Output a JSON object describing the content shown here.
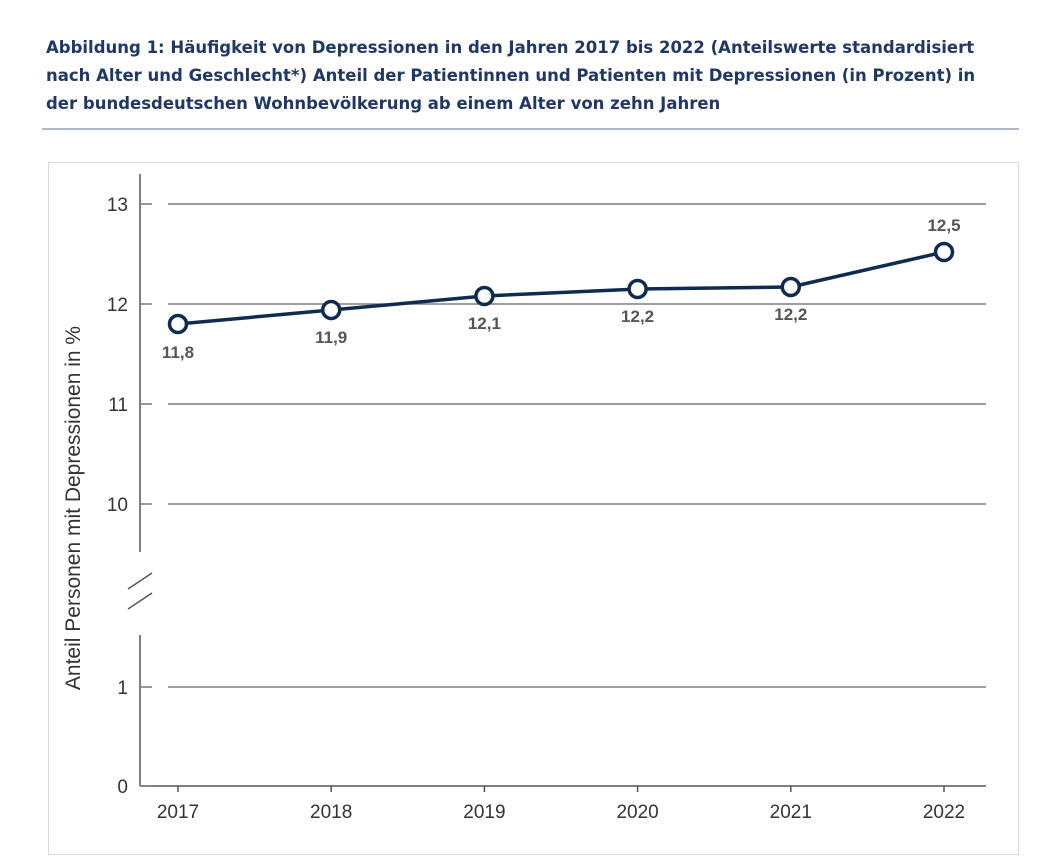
{
  "caption": "Abbildung 1: Häufigkeit von Depressionen in den Jahren 2017 bis 2022 (Anteilswerte standardisiert nach Alter und Geschlecht*) Anteil der Patientinnen und Patienten mit Depressionen (in Prozent) in der bundesdeutschen Wohnbevölkerung ab einem Alter von zehn Jahren",
  "colors": {
    "caption": "#1f3864",
    "line": "#0f2b4f",
    "grid": "#7f7f7f"
  },
  "chart_data": {
    "type": "line",
    "title": "",
    "xlabel": "",
    "ylabel": "Anteil Personen mit Depressionen in %",
    "categories": [
      "2017",
      "2018",
      "2019",
      "2020",
      "2021",
      "2022"
    ],
    "series": [
      {
        "values": [
          11.8,
          11.94,
          12.08,
          12.15,
          12.17,
          12.52
        ],
        "data_labels": [
          "11,8",
          "11,9",
          "12,1",
          "12,2",
          "12,2",
          "12,5"
        ]
      }
    ],
    "y_axis_break": true,
    "ylim_lower_segment": [
      0,
      1.5
    ],
    "ylim_upper_segment": [
      9.5,
      13.3
    ],
    "yticks_lower": [
      0,
      1
    ],
    "yticks_upper": [
      10,
      11,
      12,
      13
    ],
    "grid": true,
    "legend": "none"
  }
}
